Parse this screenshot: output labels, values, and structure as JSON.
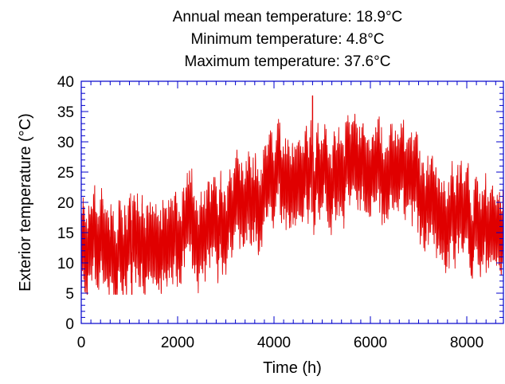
{
  "chart_data": {
    "type": "line",
    "title_lines": [
      "Annual mean temperature: 18.9°C",
      "Minimum temperature: 4.8°C",
      "Maximum temperature:  37.6°C"
    ],
    "xlabel": "Time (h)",
    "ylabel": "Exterior temperature (°C)",
    "xlim": [
      0,
      8760
    ],
    "ylim": [
      0,
      40
    ],
    "x_ticks": [
      0,
      2000,
      4000,
      6000,
      8000
    ],
    "y_ticks": [
      0,
      5,
      10,
      15,
      20,
      25,
      30,
      35,
      40
    ],
    "x_tick_labels": [
      "0",
      "2000",
      "4000",
      "6000",
      "8000"
    ],
    "y_tick_labels": [
      "0",
      "5",
      "10",
      "15",
      "20",
      "25",
      "30",
      "35",
      "40"
    ],
    "grid": false,
    "series": [
      {
        "color": "#e00000",
        "hours": 8760,
        "annual_mean": 18.9,
        "min": 4.8,
        "max": 37.6,
        "min_at_hour": 1050,
        "max_at_hour": 4800,
        "trend": {
          "x": [
            0,
            200,
            400,
            700,
            1000,
            1300,
            1600,
            1900,
            2200,
            2500,
            2800,
            3100,
            3400,
            3700,
            4000,
            4300,
            4600,
            4900,
            5200,
            5500,
            5800,
            6100,
            6400,
            6700,
            7000,
            7300,
            7600,
            7900,
            8200,
            8500,
            8760
          ],
          "y": [
            14.5,
            13.0,
            12.5,
            12.5,
            12.0,
            12.5,
            13.0,
            14.5,
            15.5,
            15.5,
            15.0,
            18.0,
            20.0,
            21.0,
            23.5,
            24.0,
            24.5,
            25.0,
            25.5,
            27.0,
            27.5,
            25.0,
            22.5,
            22.0,
            21.5,
            19.5,
            18.0,
            17.5,
            15.5,
            13.5,
            14.0
          ]
        },
        "daily_swing": 5.5
      }
    ]
  }
}
